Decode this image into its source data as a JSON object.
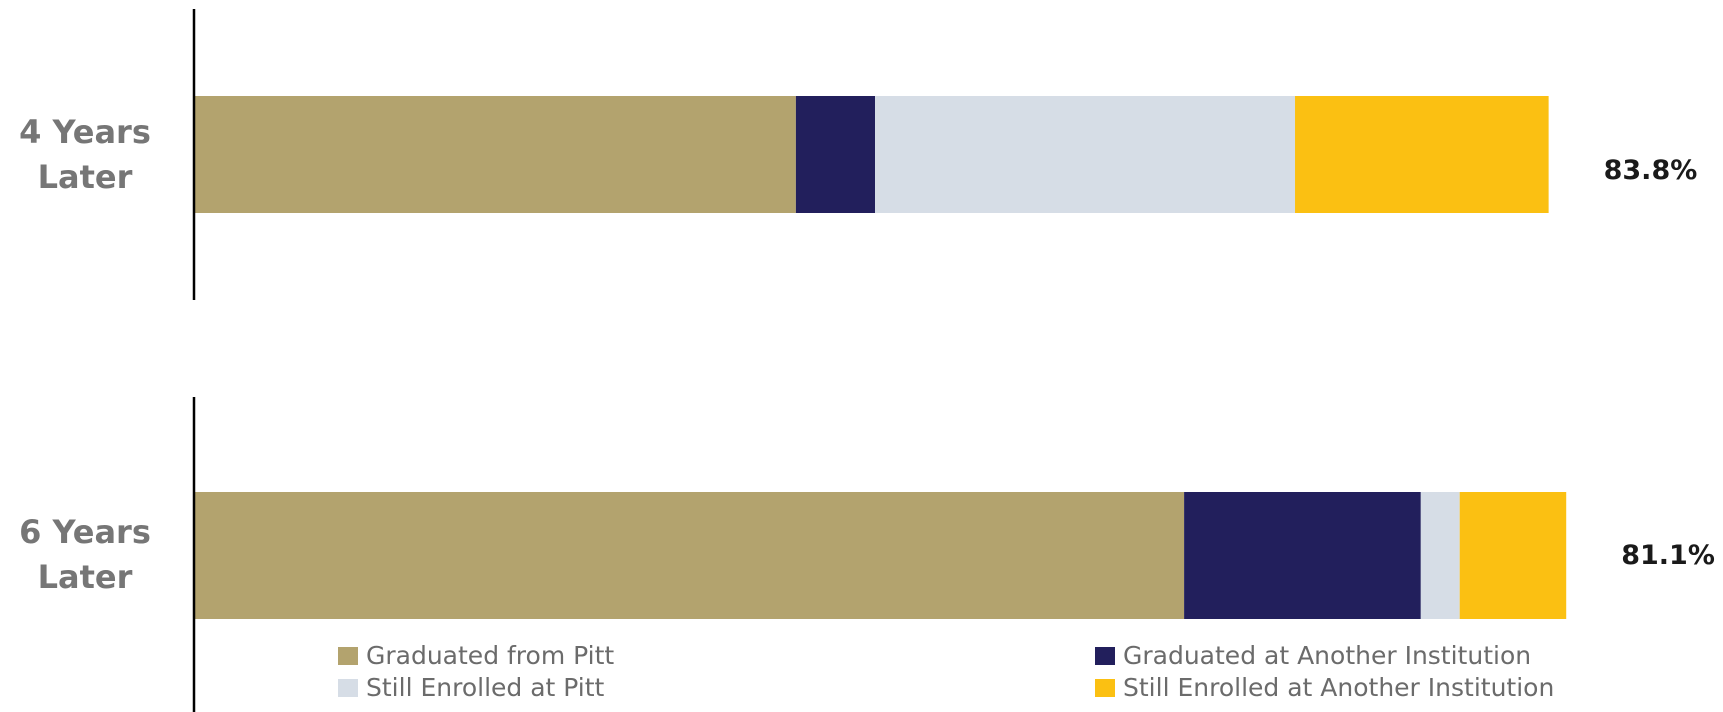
{
  "chart_data": {
    "type": "bar",
    "orientation": "horizontal",
    "stacked": true,
    "legend": "bottom",
    "series": [
      {
        "name": "Graduated from Pitt",
        "color": "#b3a36e"
      },
      {
        "name": "Graduated at Another Institution",
        "color": "#221f5c"
      },
      {
        "name": "Still Enrolled at Pitt",
        "color": "#d6dde6"
      },
      {
        "name": "Still Enrolled at Another Institution",
        "color": "#fbc012"
      }
    ],
    "panels": [
      {
        "category": "4 Years Later",
        "values": [
          37.2,
          4.9,
          26.0,
          15.7
        ],
        "xlim": [
          0,
          94.1
        ],
        "total_label": "83.8%"
      },
      {
        "category": "6 Years Later",
        "values": [
          58.5,
          14.0,
          2.3,
          6.3
        ],
        "xlim": [
          0,
          89.9
        ],
        "total_label": "81.1%"
      }
    ]
  }
}
